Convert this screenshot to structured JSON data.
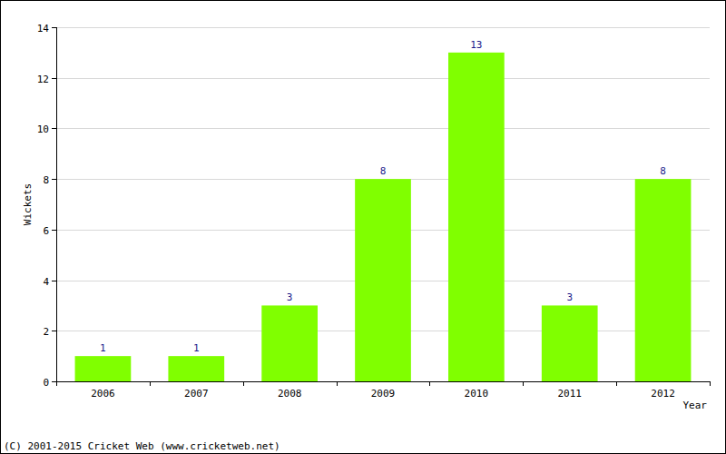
{
  "chart_data": {
    "type": "bar",
    "categories": [
      "2006",
      "2007",
      "2008",
      "2009",
      "2010",
      "2011",
      "2012"
    ],
    "values": [
      1,
      1,
      3,
      8,
      13,
      3,
      8
    ],
    "color": "#80ff00",
    "ylim": [
      0,
      14
    ],
    "yticks": [
      0,
      2,
      4,
      6,
      8,
      10,
      12,
      14
    ],
    "grid": true,
    "data_labels": true,
    "x_label": "Year",
    "y_label": "Wickets",
    "annotations": [
      "(C) 2001-2015 Cricket Web (www.cricketweb.net)"
    ]
  }
}
